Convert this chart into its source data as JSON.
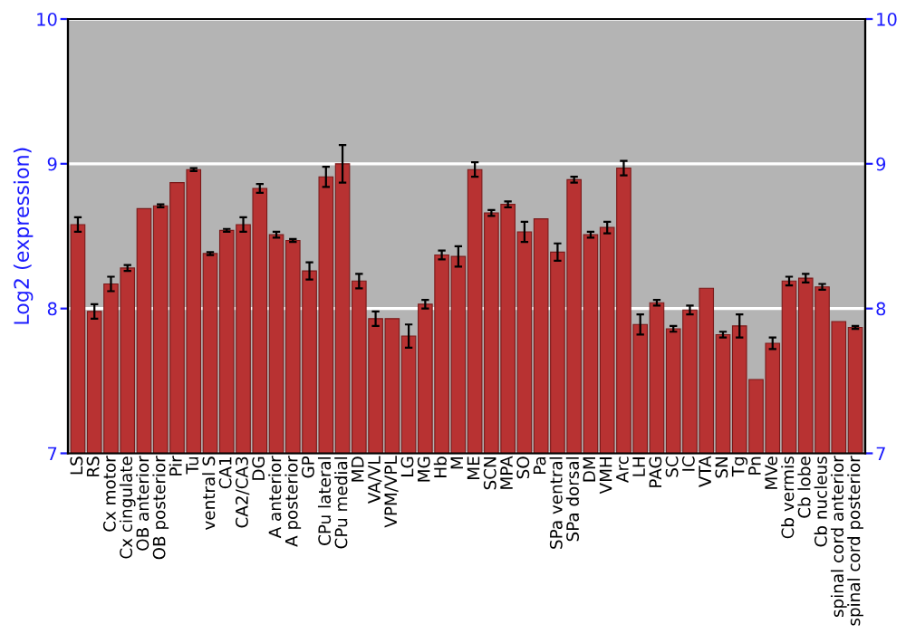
{
  "chart_data": {
    "type": "bar",
    "ylabel": "Log2 (expression)",
    "categories": [
      "LS",
      "RS",
      "Cx motor",
      "Cx cingulate",
      "OB anterior",
      "OB posterior",
      "Pir",
      "Tu",
      "ventral S",
      "CA1",
      "CA2/CA3",
      "DG",
      "A anterior",
      "A posterior",
      "GP",
      "CPu lateral",
      "CPu medial",
      "MD",
      "VA/VL",
      "VPM/VPL",
      "LG",
      "MG",
      "Hb",
      "M",
      "ME",
      "SCN",
      "MPA",
      "SO",
      "Pa",
      "SPa ventral",
      "SPa dorsal",
      "DM",
      "VMH",
      "Arc",
      "LH",
      "PAG",
      "SC",
      "IC",
      "VTA",
      "SN",
      "Tg",
      "Pn",
      "MVe",
      "Cb vermis",
      "Cb lobe",
      "Cb nucleus",
      "spinal cord anterior",
      "spinal cord posterior"
    ],
    "values": [
      8.58,
      7.98,
      8.17,
      8.28,
      8.69,
      8.71,
      8.87,
      8.96,
      8.38,
      8.54,
      8.58,
      8.83,
      8.51,
      8.47,
      8.26,
      8.91,
      9.0,
      8.19,
      7.93,
      7.93,
      7.81,
      8.03,
      8.37,
      8.36,
      8.96,
      8.66,
      8.72,
      8.53,
      8.62,
      8.39,
      8.89,
      8.51,
      8.56,
      8.97,
      7.89,
      8.04,
      7.86,
      7.99,
      8.14,
      7.82,
      7.88,
      7.51,
      7.76,
      8.19,
      8.21,
      8.15,
      7.91,
      7.87
    ],
    "errors": [
      0.05,
      0.05,
      0.05,
      0.02,
      null,
      0.01,
      null,
      0.01,
      0.01,
      0.01,
      0.05,
      0.03,
      0.02,
      0.01,
      0.06,
      0.07,
      0.13,
      0.05,
      0.05,
      null,
      0.08,
      0.03,
      0.03,
      0.07,
      0.05,
      0.02,
      0.02,
      0.07,
      null,
      0.06,
      0.02,
      0.02,
      0.04,
      0.05,
      0.07,
      0.02,
      0.02,
      0.03,
      null,
      0.02,
      0.08,
      null,
      0.04,
      0.03,
      0.03,
      0.02,
      null,
      0.01
    ],
    "color": "#b83232",
    "ylim": [
      7,
      10
    ],
    "yticks": [
      7,
      8,
      9,
      10
    ],
    "y2lim": [
      7,
      10
    ],
    "y2ticks": [
      7,
      8,
      9,
      10
    ],
    "grid": "y"
  }
}
